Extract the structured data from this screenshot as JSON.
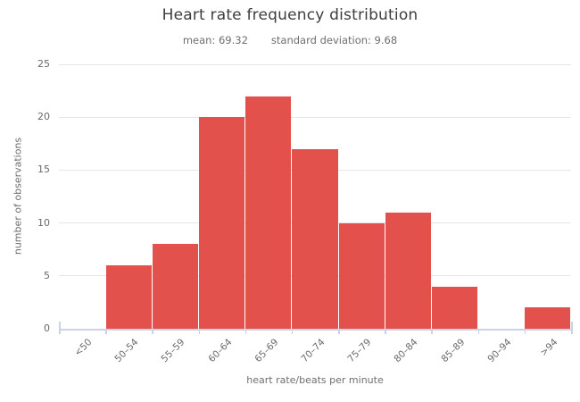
{
  "title": "Heart rate frequency distribution",
  "subtitle": {
    "mean": "mean: 69.32",
    "std": "standard deviation: 9.68"
  },
  "chart_data": {
    "type": "bar",
    "chart_kind": "histogram",
    "title": "Heart rate frequency distribution",
    "subtitle": "mean: 69.32    standard deviation: 9.68",
    "mean": 69.32,
    "standard_deviation": 9.68,
    "categories": [
      "<50",
      "50–54",
      "55–59",
      "60–64",
      "65–69",
      "70–74",
      "75–79",
      "80–84",
      "85–89",
      "90–94",
      ">94"
    ],
    "values": [
      0,
      6,
      8,
      20,
      22,
      17,
      10,
      11,
      4,
      0,
      2
    ],
    "xlabel": "heart rate/beats per minute",
    "ylabel": "number of observations",
    "ylim": [
      0,
      25
    ],
    "yticks": [
      0,
      5,
      10,
      15,
      20,
      25
    ],
    "grid": "horizontal",
    "legend": "none",
    "colors": {
      "bar": "#e3514c",
      "grid": "#e6e6e6",
      "axis": "#c9d2e6",
      "title_text": "#3d3d3d",
      "label_text": "#6e6e6e"
    }
  }
}
